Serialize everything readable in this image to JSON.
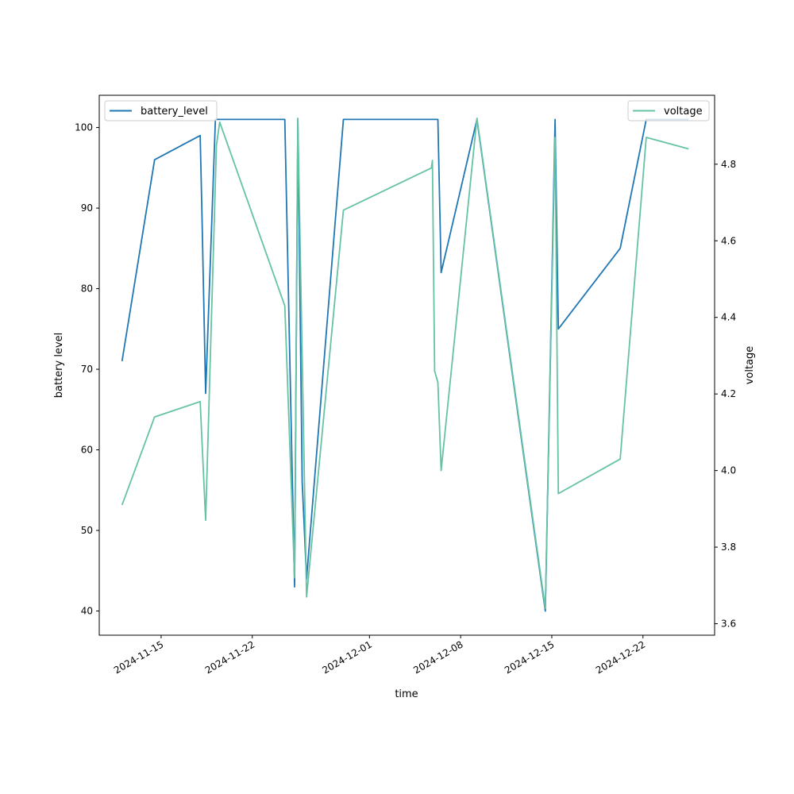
{
  "chart_data": {
    "type": "line",
    "xlabel": "time",
    "ylabel": "battery level",
    "y2label": "voltage",
    "xlim": [
      "2024-11-10T06:00",
      "2024-12-27T12:00"
    ],
    "ylim": [
      37,
      104
    ],
    "y2lim": [
      3.57,
      4.98
    ],
    "x_ticks": [
      "2024-11-15",
      "2024-11-22",
      "2024-12-01",
      "2024-12-08",
      "2024-12-15",
      "2024-12-22"
    ],
    "y_ticks": [
      40,
      50,
      60,
      70,
      80,
      90,
      100
    ],
    "y2_ticks": [
      3.6,
      3.8,
      4.0,
      4.2,
      4.4,
      4.6,
      4.8
    ],
    "y2_tick_labels": [
      "3.6",
      "3.8",
      "4.0",
      "4.2",
      "4.4",
      "4.6",
      "4.8"
    ],
    "grid": false,
    "series": [
      {
        "name": "battery_level",
        "axis": "left",
        "color": "#1f77b4",
        "legend_position": "top-left",
        "points": [
          [
            "2024-11-12T00:00",
            71
          ],
          [
            "2024-11-14T12:00",
            96
          ],
          [
            "2024-11-18T00:00",
            99
          ],
          [
            "2024-11-18T03:00",
            90
          ],
          [
            "2024-11-18T10:00",
            67
          ],
          [
            "2024-11-19T04:00",
            101
          ],
          [
            "2024-11-24T12:00",
            101
          ],
          [
            "2024-11-25T06:00",
            43
          ],
          [
            "2024-11-25T12:00",
            101
          ],
          [
            "2024-11-25T20:00",
            56
          ],
          [
            "2024-11-26T04:00",
            44
          ],
          [
            "2024-11-29T00:00",
            101
          ],
          [
            "2024-12-06T06:00",
            101
          ],
          [
            "2024-12-06T12:00",
            82
          ],
          [
            "2024-12-09T06:00",
            101
          ],
          [
            "2024-12-14T12:00",
            40
          ],
          [
            "2024-12-15T06:00",
            101
          ],
          [
            "2024-12-15T06:30",
            99
          ],
          [
            "2024-12-15T12:00",
            75
          ],
          [
            "2024-12-20T06:00",
            85
          ],
          [
            "2024-12-22T06:00",
            101
          ],
          [
            "2024-12-25T12:00",
            101
          ]
        ]
      },
      {
        "name": "voltage",
        "axis": "right",
        "color": "#66c2a5",
        "legend_position": "top-right",
        "points": [
          [
            "2024-11-12T00:00",
            3.91
          ],
          [
            "2024-11-14T12:00",
            4.14
          ],
          [
            "2024-11-18T00:00",
            4.18
          ],
          [
            "2024-11-18T10:00",
            3.87
          ],
          [
            "2024-11-19T06:00",
            4.85
          ],
          [
            "2024-11-19T12:00",
            4.91
          ],
          [
            "2024-11-24T12:00",
            4.43
          ],
          [
            "2024-11-25T06:00",
            3.72
          ],
          [
            "2024-11-25T12:00",
            4.92
          ],
          [
            "2024-11-26T04:00",
            3.67
          ],
          [
            "2024-11-29T00:00",
            4.68
          ],
          [
            "2024-12-05T18:00",
            4.79
          ],
          [
            "2024-12-05T20:00",
            4.81
          ],
          [
            "2024-12-06T00:00",
            4.26
          ],
          [
            "2024-12-06T06:00",
            4.23
          ],
          [
            "2024-12-06T12:00",
            4.0
          ],
          [
            "2024-12-09T06:00",
            4.92
          ],
          [
            "2024-12-14T12:00",
            3.64
          ],
          [
            "2024-12-15T06:00",
            4.87
          ],
          [
            "2024-12-15T12:00",
            3.94
          ],
          [
            "2024-12-20T06:00",
            4.03
          ],
          [
            "2024-12-22T06:00",
            4.87
          ],
          [
            "2024-12-25T12:00",
            4.84
          ]
        ]
      }
    ]
  }
}
